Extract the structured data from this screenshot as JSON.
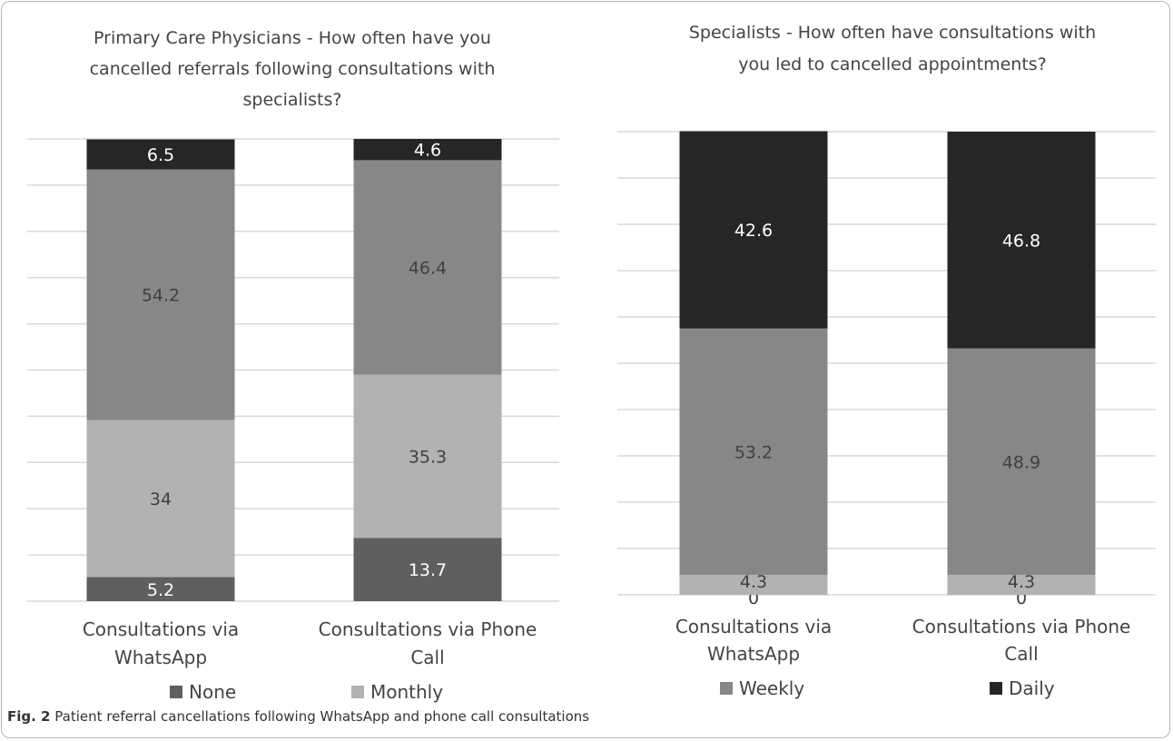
{
  "caption": {
    "label": "Fig. 2",
    "text": "Patient referral cancellations following WhatsApp and phone call consultations"
  },
  "colors": {
    "None": "#5f5f5f",
    "Monthly": "#b2b2b2",
    "Weekly": "#878787",
    "Daily": "#262626",
    "grid": "#d9d9d9",
    "label_dark": "#404040",
    "label_light": "#ffffff"
  },
  "chart_data": [
    {
      "type": "bar",
      "stacked": true,
      "title": "Primary Care Physicians - How often have you cancelled referrals following consultations with specialists?",
      "title_lines": [
        "Primary Care Physicians - How often have you",
        "cancelled referrals following consultations with",
        "specialists?"
      ],
      "categories": [
        "Consultations via WhatsApp",
        "Consultations via Phone Call"
      ],
      "category_lines": [
        [
          "Consultations via",
          "WhatsApp"
        ],
        [
          "Consultations via Phone",
          "Call"
        ]
      ],
      "series": [
        {
          "name": "None",
          "values": [
            5.2,
            13.7
          ]
        },
        {
          "name": "Monthly",
          "values": [
            34,
            35.3
          ]
        },
        {
          "name": "Weekly",
          "values": [
            54.2,
            46.4
          ]
        },
        {
          "name": "Daily",
          "values": [
            6.5,
            4.6
          ]
        }
      ],
      "legend_shown": [
        "None",
        "Monthly"
      ],
      "ylim": [
        0,
        100
      ],
      "grid": true,
      "legend_position": "bottom"
    },
    {
      "type": "bar",
      "stacked": true,
      "title": "Specialists - How often have consultations with you led to cancelled appointments?",
      "title_lines": [
        "Specialists - How often have consultations with",
        "you led to cancelled appointments?"
      ],
      "categories": [
        "Consultations via WhatsApp",
        "Consultations via Phone Call"
      ],
      "category_lines": [
        [
          "Consultations via",
          "WhatsApp"
        ],
        [
          "Consultations via Phone",
          "Call"
        ]
      ],
      "series": [
        {
          "name": "None",
          "values": [
            0,
            0
          ]
        },
        {
          "name": "Monthly",
          "values": [
            4.3,
            4.3
          ]
        },
        {
          "name": "Weekly",
          "values": [
            53.2,
            48.9
          ]
        },
        {
          "name": "Daily",
          "values": [
            42.6,
            46.8
          ]
        }
      ],
      "legend_shown": [
        "Weekly",
        "Daily"
      ],
      "ylim": [
        0,
        100
      ],
      "grid": true,
      "legend_position": "bottom"
    }
  ]
}
